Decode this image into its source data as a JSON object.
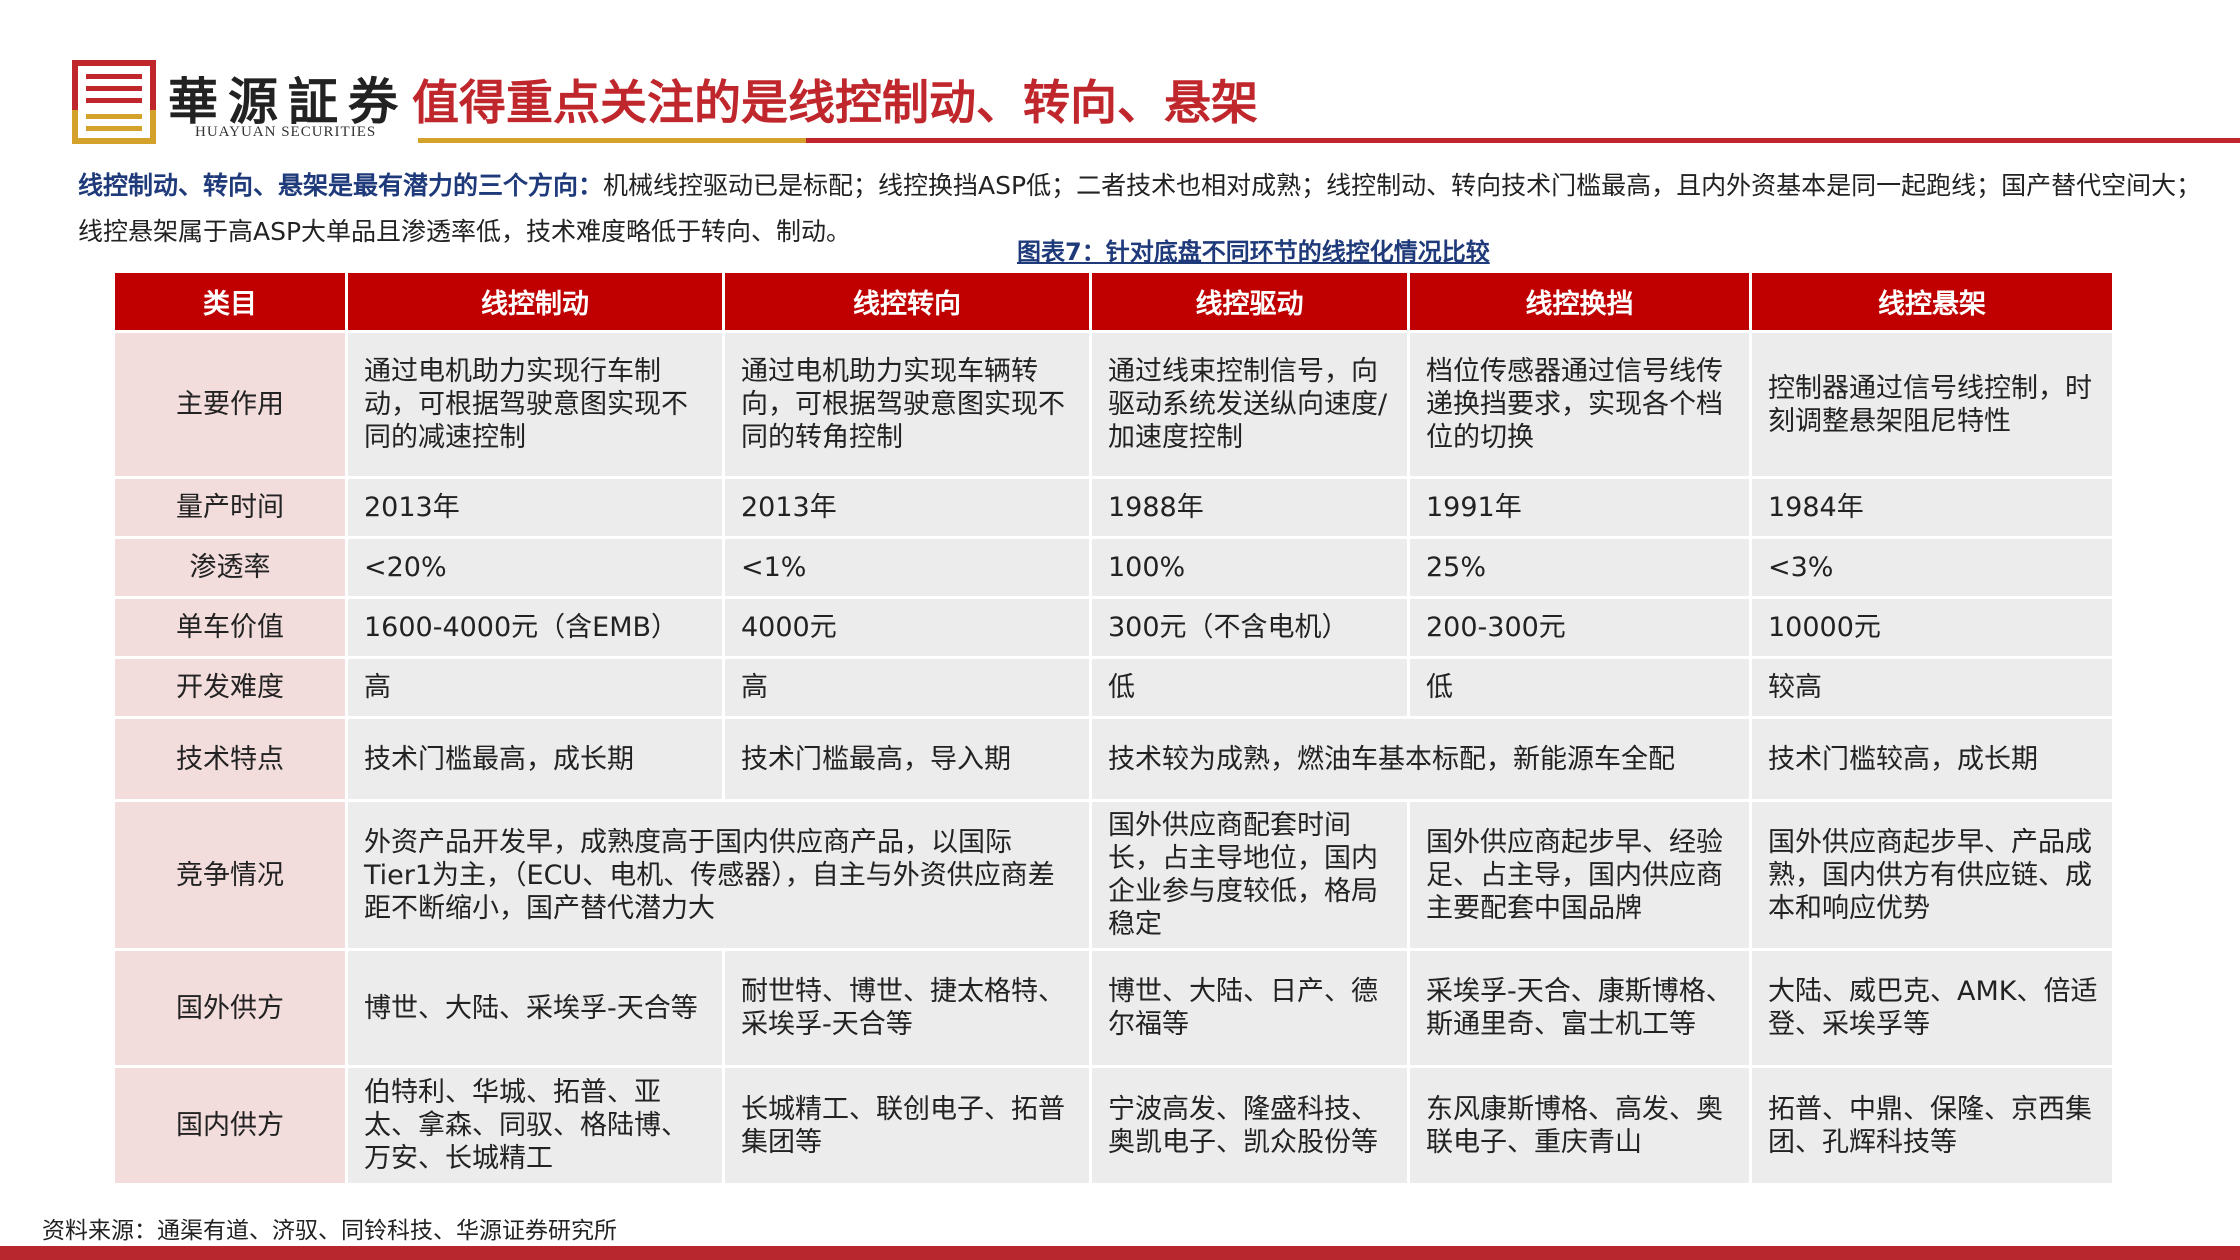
{
  "brand": {
    "name_cn": "華源証券",
    "name_en": "HUAYUAN SECURITIES"
  },
  "colors": {
    "brand_red": "#c0272d",
    "brand_gold": "#d4a12a",
    "header_red": "#c00000",
    "navy": "#1f3a7a",
    "row_label_bg": "#f3dcdc",
    "cell_bg": "#ececec"
  },
  "title": "值得重点关注的是线控制动、转向、悬架",
  "intro": {
    "bold": "线控制动、转向、悬架是最有潜力的三个方向：",
    "text": "机械线控驱动已是标配；线控换挡ASP低；二者技术也相对成熟；线控制动、转向技术门槛最高，且内外资基本是同一起跑线；国产替代空间大；线控悬架属于高ASP大单品且渗透率低，技术难度略低于转向、制动。"
  },
  "caption": "图表7：针对底盘不同环节的线控化情况比较",
  "table": {
    "headers": [
      "类目",
      "线控制动",
      "线控转向",
      "线控驱动",
      "线控换挡",
      "线控悬架"
    ],
    "rows": [
      {
        "label": "主要作用",
        "cells": [
          {
            "text": "通过电机助力实现行车制动，可根据驾驶意图实现不同的减速控制"
          },
          {
            "text": "通过电机助力实现车辆转向，可根据驾驶意图实现不同的转角控制"
          },
          {
            "text": "通过线束控制信号，向驱动系统发送纵向速度/加速度控制"
          },
          {
            "text": "档位传感器通过信号线传递换挡要求，实现各个档位的切换"
          },
          {
            "text": "控制器通过信号线控制，时刻调整悬架阻尼特性"
          }
        ]
      },
      {
        "label": "量产时间",
        "cells": [
          {
            "text": "2013年"
          },
          {
            "text": "2013年"
          },
          {
            "text": "1988年"
          },
          {
            "text": "1991年"
          },
          {
            "text": "1984年"
          }
        ]
      },
      {
        "label": "渗透率",
        "cells": [
          {
            "text": "<20%"
          },
          {
            "text": "<1%"
          },
          {
            "text": "100%"
          },
          {
            "text": "25%"
          },
          {
            "text": "<3%"
          }
        ]
      },
      {
        "label": "单车价值",
        "cells": [
          {
            "text": "1600-4000元（含EMB）"
          },
          {
            "text": "4000元"
          },
          {
            "text": "300元（不含电机）"
          },
          {
            "text": "200-300元"
          },
          {
            "text": "10000元"
          }
        ]
      },
      {
        "label": "开发难度",
        "cells": [
          {
            "text": "高"
          },
          {
            "text": "高"
          },
          {
            "text": "低"
          },
          {
            "text": "低"
          },
          {
            "text": "较高"
          }
        ]
      },
      {
        "label": "技术特点",
        "cells": [
          {
            "text": "技术门槛最高，成长期"
          },
          {
            "text": "技术门槛最高，导入期"
          },
          {
            "text": "技术较为成熟，燃油车基本标配，新能源车全配",
            "span": 2
          },
          {
            "text": "技术门槛较高，成长期"
          }
        ]
      },
      {
        "label": "竞争情况",
        "cells": [
          {
            "text": "外资产品开发早，成熟度高于国内供应商产品，以国际Tier1为主，（ECU、电机、传感器），自主与外资供应商差距不断缩小，国产替代潜力大",
            "span": 2
          },
          {
            "text": "国外供应商配套时间长，占主导地位，国内企业参与度较低，格局稳定"
          },
          {
            "text": "国外供应商起步早、经验足、占主导，国内供应商主要配套中国品牌"
          },
          {
            "text": "国外供应商起步早、产品成熟，国内供方有供应链、成本和响应优势"
          }
        ]
      },
      {
        "label": "国外供方",
        "cells": [
          {
            "text": "博世、大陆、采埃孚-天合等"
          },
          {
            "text": "耐世特、博世、捷太格特、采埃孚-天合等"
          },
          {
            "text": "博世、大陆、日产、德尔福等"
          },
          {
            "text": "采埃孚-天合、康斯博格、斯通里奇、富士机工等"
          },
          {
            "text": "大陆、威巴克、AMK、倍适登、采埃孚等"
          }
        ]
      },
      {
        "label": "国内供方",
        "cells": [
          {
            "text": "伯特利、华城、拓普、亚太、拿森、同驭、格陆博、万安、长城精工"
          },
          {
            "text": "长城精工、联创电子、拓普集团等"
          },
          {
            "text": "宁波高发、隆盛科技、奥凯电子、凯众股份等"
          },
          {
            "text": "东风康斯博格、高发、奥联电子、重庆青山"
          },
          {
            "text": "拓普、中鼎、保隆、京西集团、孔辉科技等"
          }
        ]
      }
    ]
  },
  "source": "资料来源：通渠有道、济驭、同铃科技、华源证券研究所"
}
